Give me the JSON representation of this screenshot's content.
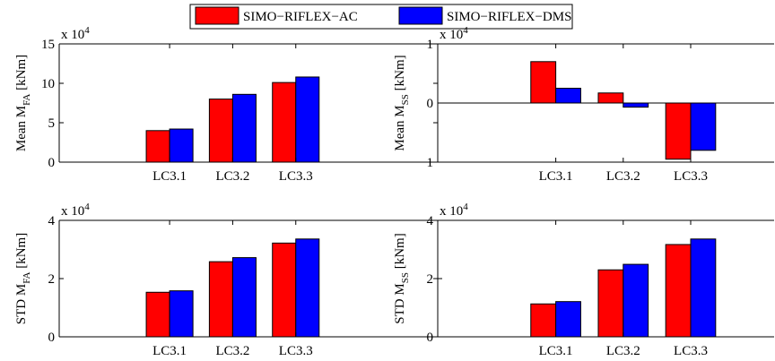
{
  "legend": {
    "placement": "top-center",
    "entries": [
      {
        "label": "SIMO−RIFLEX−AC",
        "color": "#ff0000"
      },
      {
        "label": "SIMO−RIFLEX−DMS",
        "color": "#0000ff"
      }
    ]
  },
  "chart_data": [
    {
      "type": "bar",
      "categories": [
        "LC3.1",
        "LC3.2",
        "LC3.3"
      ],
      "series": [
        {
          "name": "SIMO−RIFLEX−AC",
          "color": "#ff0000",
          "values": [
            4.0,
            8.0,
            10.1
          ]
        },
        {
          "name": "SIMO−RIFLEX−DMS",
          "color": "#0000ff",
          "values": [
            4.2,
            8.6,
            10.8
          ]
        }
      ],
      "ylabel": {
        "prefix": "Mean M",
        "sub": "FA",
        "suffix": " [kNm]"
      },
      "multiplier": {
        "base": "x 10",
        "exp": "4"
      },
      "ylim": [
        0,
        15
      ],
      "yticks": [
        0,
        5,
        10,
        15
      ],
      "xlim": [
        0,
        6
      ],
      "bar_centers": [
        1.75,
        2.75,
        3.75
      ],
      "zero_line": false
    },
    {
      "type": "bar",
      "categories": [
        "LC3.1",
        "LC3.2",
        "LC3.3"
      ],
      "series": [
        {
          "name": "SIMO−RIFLEX−AC",
          "color": "#ff0000",
          "values": [
            0.7,
            0.17,
            -0.95
          ]
        },
        {
          "name": "SIMO−RIFLEX−DMS",
          "color": "#0000ff",
          "values": [
            0.25,
            -0.07,
            -0.8
          ]
        }
      ],
      "ylabel": {
        "prefix": "Mean M",
        "sub": "SS",
        "suffix": " [kNm]"
      },
      "multiplier": {
        "base": "x 10",
        "exp": "4"
      },
      "ylim": [
        -1,
        1
      ],
      "yticks": [
        -1,
        0,
        1
      ],
      "ytick_labels": [
        "−1",
        "0",
        "1"
      ],
      "xlim": [
        0,
        5
      ],
      "bar_centers": [
        1.75,
        2.75,
        3.75
      ],
      "zero_line": true
    },
    {
      "type": "bar",
      "categories": [
        "LC3.1",
        "LC3.2",
        "LC3.3"
      ],
      "series": [
        {
          "name": "SIMO−RIFLEX−AC",
          "color": "#ff0000",
          "values": [
            1.53,
            2.58,
            3.22
          ]
        },
        {
          "name": "SIMO−RIFLEX−DMS",
          "color": "#0000ff",
          "values": [
            1.58,
            2.72,
            3.36
          ]
        }
      ],
      "ylabel": {
        "prefix": "STD M",
        "sub": "FA",
        "suffix": " [kNm]"
      },
      "multiplier": {
        "base": "x 10",
        "exp": "4"
      },
      "ylim": [
        0,
        4
      ],
      "yticks": [
        0,
        2,
        4
      ],
      "xlim": [
        0,
        6
      ],
      "bar_centers": [
        1.75,
        2.75,
        3.75
      ],
      "zero_line": false
    },
    {
      "type": "bar",
      "categories": [
        "LC3.1",
        "LC3.2",
        "LC3.3"
      ],
      "series": [
        {
          "name": "SIMO−RIFLEX−AC",
          "color": "#ff0000",
          "values": [
            1.13,
            2.3,
            3.17
          ]
        },
        {
          "name": "SIMO−RIFLEX−DMS",
          "color": "#0000ff",
          "values": [
            1.21,
            2.49,
            3.36
          ]
        }
      ],
      "ylabel": {
        "prefix": "STD M",
        "sub": "SS",
        "suffix": " [kNm]"
      },
      "multiplier": {
        "base": "x 10",
        "exp": "4"
      },
      "ylim": [
        0,
        4
      ],
      "yticks": [
        0,
        2,
        4
      ],
      "xlim": [
        0,
        5
      ],
      "bar_centers": [
        1.75,
        2.75,
        3.75
      ],
      "zero_line": false
    }
  ]
}
